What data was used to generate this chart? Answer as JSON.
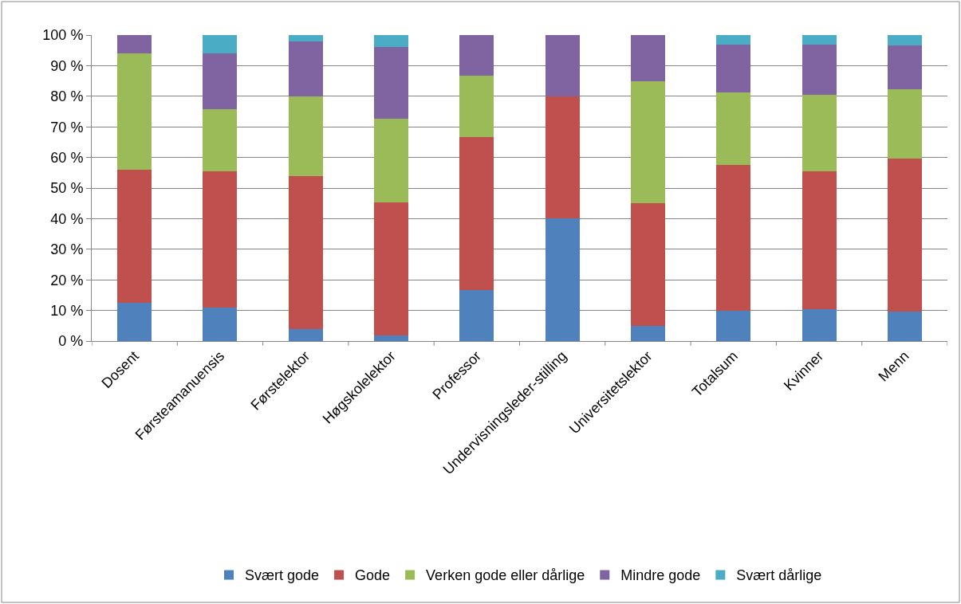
{
  "chart_data": {
    "type": "bar",
    "stacked": true,
    "categories": [
      "Dosent",
      "Førsteamanuensis",
      "Førstelektor",
      "Høgskolelektor",
      "Professor",
      "Undervisningsleder-stilling",
      "Universitetslektor",
      "Totalsum",
      "Kvinner",
      "Menn"
    ],
    "series": [
      {
        "name": "Svært gode",
        "color": "#4f81bd",
        "values": [
          12.5,
          11,
          4,
          1.8,
          16.7,
          40,
          5,
          10,
          10.5,
          9.7
        ]
      },
      {
        "name": "Gode",
        "color": "#c0504d",
        "values": [
          43.5,
          44.5,
          50,
          43.4,
          50,
          40,
          40,
          47.5,
          45,
          50
        ]
      },
      {
        "name": "Verken gode eller dårlige",
        "color": "#9bbb59",
        "values": [
          38,
          20.2,
          26,
          27.4,
          20,
          0,
          40,
          23.7,
          25,
          22.6
        ]
      },
      {
        "name": "Mindre gode",
        "color": "#8064a2",
        "values": [
          6,
          18.3,
          18,
          23.4,
          13.3,
          20,
          15,
          15.8,
          16.5,
          14.4
        ]
      },
      {
        "name": "Svært dårlige",
        "color": "#4bacc6",
        "values": [
          0,
          6,
          2,
          4,
          0,
          0,
          0,
          3,
          3,
          3.3
        ]
      }
    ],
    "ylim": [
      0,
      100
    ],
    "yticks": [
      {
        "value": 0,
        "label": "0 %"
      },
      {
        "value": 10,
        "label": "10 %"
      },
      {
        "value": 20,
        "label": "20 %"
      },
      {
        "value": 30,
        "label": "30 %"
      },
      {
        "value": 40,
        "label": "40 %"
      },
      {
        "value": 50,
        "label": "50 %"
      },
      {
        "value": 60,
        "label": "60 %"
      },
      {
        "value": 70,
        "label": "70 %"
      },
      {
        "value": 80,
        "label": "80 %"
      },
      {
        "value": 90,
        "label": "90 %"
      },
      {
        "value": 100,
        "label": "100 %"
      }
    ],
    "grid": "y",
    "legend": "bottom"
  }
}
